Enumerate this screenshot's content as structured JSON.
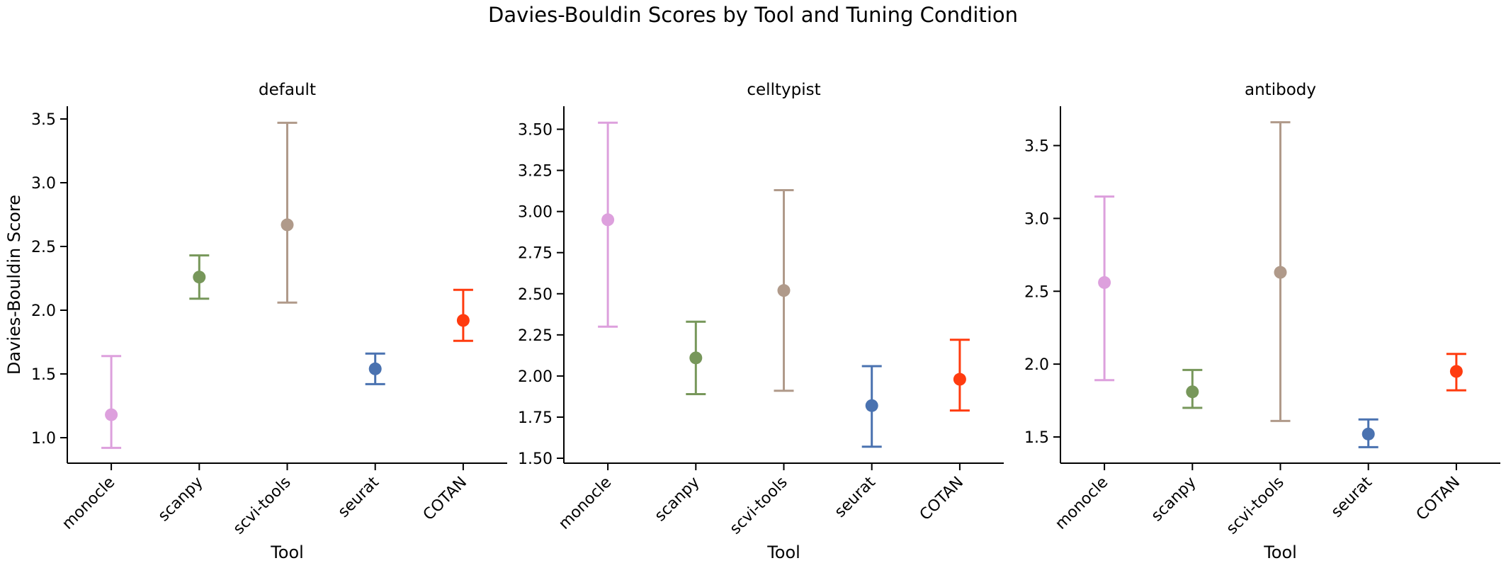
{
  "figure": {
    "title": "Davies-Bouldin Scores by Tool and Tuning Condition"
  },
  "chart_data": [
    {
      "type": "scatter",
      "title": "default",
      "xlabel": "Tool",
      "ylabel": "Davies-Bouldin Score",
      "categories": [
        "monocle",
        "scanpy",
        "scvi-tools",
        "seurat",
        "COTAN"
      ],
      "colors": [
        "#dda0dd",
        "#77975a",
        "#b09a8a",
        "#4a72b0",
        "#ff3b0f"
      ],
      "ylim": [
        0.8,
        3.6
      ],
      "yticks": [
        1.0,
        1.5,
        2.0,
        2.5,
        3.0,
        3.5
      ],
      "tick_labels": [
        "1.0",
        "1.5",
        "2.0",
        "2.5",
        "3.0",
        "3.5"
      ],
      "values": [
        1.18,
        2.26,
        2.67,
        1.54,
        1.92
      ],
      "err_low": [
        0.92,
        2.09,
        2.06,
        1.42,
        1.76
      ],
      "err_high": [
        1.64,
        2.43,
        3.47,
        1.66,
        2.16
      ]
    },
    {
      "type": "scatter",
      "title": "celltypist",
      "xlabel": "Tool",
      "ylabel": "",
      "categories": [
        "monocle",
        "scanpy",
        "scvi-tools",
        "seurat",
        "COTAN"
      ],
      "colors": [
        "#dda0dd",
        "#77975a",
        "#b09a8a",
        "#4a72b0",
        "#ff3b0f"
      ],
      "ylim": [
        1.47,
        3.64
      ],
      "yticks": [
        1.5,
        1.75,
        2.0,
        2.25,
        2.5,
        2.75,
        3.0,
        3.25,
        3.5
      ],
      "tick_labels": [
        "1.50",
        "1.75",
        "2.00",
        "2.25",
        "2.50",
        "2.75",
        "3.00",
        "3.25",
        "3.50"
      ],
      "values": [
        2.95,
        2.11,
        2.52,
        1.82,
        1.98
      ],
      "err_low": [
        2.3,
        1.89,
        1.91,
        1.57,
        1.79
      ],
      "err_high": [
        3.54,
        2.33,
        3.13,
        2.06,
        2.22
      ]
    },
    {
      "type": "scatter",
      "title": "antibody",
      "xlabel": "Tool",
      "ylabel": "",
      "categories": [
        "monocle",
        "scanpy",
        "scvi-tools",
        "seurat",
        "COTAN"
      ],
      "colors": [
        "#dda0dd",
        "#77975a",
        "#b09a8a",
        "#4a72b0",
        "#ff3b0f"
      ],
      "ylim": [
        1.32,
        3.77
      ],
      "yticks": [
        1.5,
        2.0,
        2.5,
        3.0,
        3.5
      ],
      "tick_labels": [
        "1.5",
        "2.0",
        "2.5",
        "3.0",
        "3.5"
      ],
      "values": [
        2.56,
        1.81,
        2.63,
        1.52,
        1.95
      ],
      "err_low": [
        1.89,
        1.7,
        1.61,
        1.43,
        1.82
      ],
      "err_high": [
        3.15,
        1.96,
        3.66,
        1.62,
        2.07
      ]
    }
  ]
}
